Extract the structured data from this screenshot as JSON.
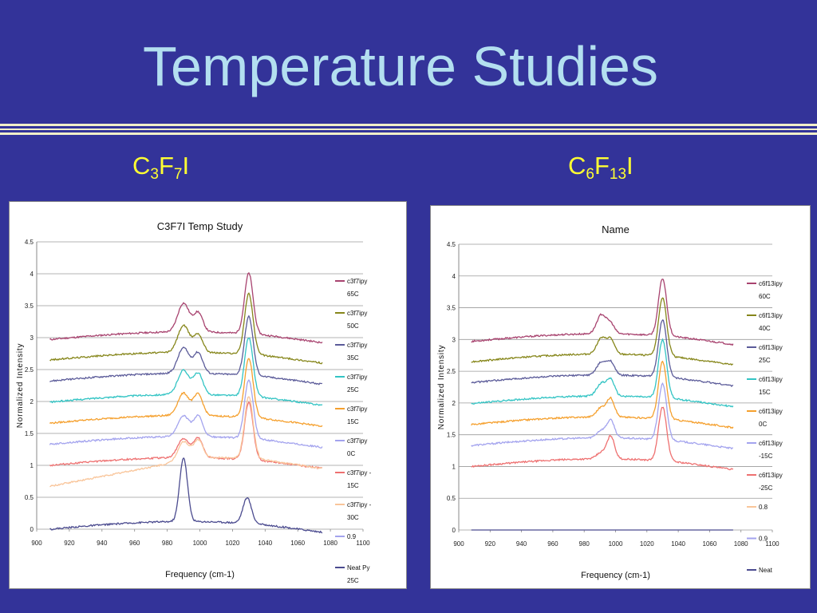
{
  "slide": {
    "title": "Temperature Studies"
  },
  "left_heading": {
    "base1": "C",
    "sub1": "3",
    "base2": "F",
    "sub2": "7",
    "base3": "I"
  },
  "right_heading": {
    "base1": "C",
    "sub1": "6",
    "base2": "F",
    "sub2": "13",
    "base3": "I"
  },
  "chart_data": [
    {
      "type": "line",
      "title": "C3F7I Temp Study",
      "xlabel": "Frequency (cm-1)",
      "ylabel": "Normalized Intensity",
      "xlim": [
        900,
        1100
      ],
      "ylim": [
        0,
        4.5
      ],
      "x_ticks": [
        "900",
        "920",
        "940",
        "960",
        "980",
        "1000",
        "1020",
        "1040",
        "1060",
        "1080",
        "1100"
      ],
      "y_ticks": [
        "0",
        "0.5",
        "1",
        "1.5",
        "2",
        "2.5",
        "3",
        "3.5",
        "4",
        "4.5"
      ],
      "grid": true,
      "legend": "right",
      "series": [
        {
          "name": "c3f7ipy 65C",
          "legend_lines": [
            "c3f7ipy",
            "65C"
          ],
          "color": "#a8436f",
          "offset": 2.97,
          "peaks": [
            [
              990,
              0.45,
              3.5
            ],
            [
              999,
              0.3,
              2.8
            ],
            [
              1030,
              0.95,
              2.6
            ]
          ]
        },
        {
          "name": "c3f7ipy 50C",
          "legend_lines": [
            "c3f7ipy",
            "50C"
          ],
          "color": "#86861a",
          "offset": 2.65,
          "peaks": [
            [
              990,
              0.42,
              3.5
            ],
            [
              999,
              0.28,
              2.8
            ],
            [
              1030,
              0.95,
              2.6
            ]
          ]
        },
        {
          "name": "c3f7ipy 35C",
          "legend_lines": [
            "c3f7ipy",
            "35C"
          ],
          "color": "#5b5b99",
          "offset": 2.32,
          "peaks": [
            [
              990,
              0.4,
              3.5
            ],
            [
              999,
              0.32,
              2.8
            ],
            [
              1030,
              0.92,
              2.6
            ]
          ]
        },
        {
          "name": "c3f7ipy 25C",
          "legend_lines": [
            "c3f7ipy",
            "25C"
          ],
          "color": "#33c4c4",
          "offset": 1.99,
          "peaks": [
            [
              990,
              0.38,
              3.5
            ],
            [
              999,
              0.33,
              2.8
            ],
            [
              1030,
              0.92,
              2.6
            ]
          ]
        },
        {
          "name": "c3f7ipy 15C",
          "legend_lines": [
            "c3f7ipy",
            "15C"
          ],
          "color": "#f5a02e",
          "offset": 1.66,
          "peaks": [
            [
              990,
              0.35,
              3.5
            ],
            [
              999,
              0.33,
              2.8
            ],
            [
              1030,
              0.93,
              2.6
            ]
          ]
        },
        {
          "name": "c3f7ipy 0C",
          "legend_lines": [
            "c3f7ipy",
            "0C"
          ],
          "color": "#a3a3ee",
          "offset": 1.33,
          "peaks": [
            [
              990,
              0.33,
              3.5
            ],
            [
              999,
              0.32,
              2.8
            ],
            [
              1030,
              0.92,
              2.6
            ]
          ]
        },
        {
          "name": "c3f7ipy -15C",
          "legend_lines": [
            "c3f7ipy -",
            "15C"
          ],
          "color": "#ee7070",
          "offset": 1.0,
          "peaks": [
            [
              990,
              0.3,
              3.5
            ],
            [
              999,
              0.3,
              2.8
            ],
            [
              1030,
              0.9,
              2.6
            ]
          ]
        },
        {
          "name": "c3f7ipy -30C",
          "legend_lines": [
            "c3f7ipy -",
            "30C"
          ],
          "color": "#f9c59a",
          "offset": 0.67,
          "rise": 0.45,
          "peaks": [
            [
              990,
              0.3,
              3.5
            ],
            [
              999,
              0.28,
              2.8
            ],
            [
              1030,
              0.95,
              2.6
            ]
          ]
        },
        {
          "name": "0.9",
          "legend_lines": [
            "0.9"
          ],
          "color": "#a3a3ee",
          "values_flat": null
        },
        {
          "name": "Neat Py 25C",
          "legend_lines": [
            "Neat Py",
            "25C"
          ],
          "color": "#4b4b8f",
          "offset": 0.0,
          "peaks": [
            [
              990,
              1.0,
              2.4
            ],
            [
              1029,
              0.4,
              2.6
            ]
          ]
        }
      ]
    },
    {
      "type": "line",
      "title": "Name",
      "xlabel": "Frequency (cm-1)",
      "ylabel": "Normalized Intensity",
      "xlim": [
        900,
        1100
      ],
      "ylim": [
        0,
        4.5
      ],
      "x_ticks": [
        "900",
        "920",
        "940",
        "960",
        "980",
        "1000",
        "1020",
        "1040",
        "1060",
        "1080",
        "1100"
      ],
      "y_ticks": [
        "0",
        "0.5",
        "1",
        "1.5",
        "2",
        "2.5",
        "3",
        "3.5",
        "4",
        "4.5"
      ],
      "grid": true,
      "legend": "right",
      "series": [
        {
          "name": "c6f13ipy 60C",
          "legend_lines": [
            "c6f13ipy",
            "60C"
          ],
          "color": "#a8436f",
          "offset": 2.97,
          "peaks": [
            [
              991,
              0.3,
              3.0
            ],
            [
              997,
              0.15,
              2.4
            ],
            [
              1030,
              0.9,
              2.6
            ]
          ]
        },
        {
          "name": "c6f13ipy 40C",
          "legend_lines": [
            "c6f13ipy",
            "40C"
          ],
          "color": "#86861a",
          "offset": 2.65,
          "peaks": [
            [
              991,
              0.25,
              3.0
            ],
            [
              997,
              0.22,
              2.4
            ],
            [
              1030,
              0.92,
              2.6
            ]
          ]
        },
        {
          "name": "c6f13ipy 25C",
          "legend_lines": [
            "c6f13ipy",
            "25C"
          ],
          "color": "#5b5b99",
          "offset": 2.32,
          "peaks": [
            [
              991,
              0.2,
              3.0
            ],
            [
              997,
              0.2,
              2.4
            ],
            [
              1030,
              0.9,
              2.6
            ]
          ]
        },
        {
          "name": "c6f13ipy 15C",
          "legend_lines": [
            "c6f13ipy",
            "15C"
          ],
          "color": "#33c4c4",
          "offset": 1.99,
          "peaks": [
            [
              991,
              0.2,
              3.0
            ],
            [
              997,
              0.25,
              2.4
            ],
            [
              1030,
              0.92,
              2.6
            ]
          ]
        },
        {
          "name": "c6f13ipy 0C",
          "legend_lines": [
            "c6f13ipy",
            "0C"
          ],
          "color": "#f5a02e",
          "offset": 1.66,
          "peaks": [
            [
              991,
              0.15,
              3.0
            ],
            [
              997,
              0.28,
              2.4
            ],
            [
              1030,
              0.9,
              2.6
            ]
          ]
        },
        {
          "name": "c6f13ipy -15C",
          "legend_lines": [
            "c6f13ipy",
            "-15C"
          ],
          "color": "#a3a3ee",
          "offset": 1.33,
          "peaks": [
            [
              991,
              0.12,
              3.0
            ],
            [
              997,
              0.27,
              2.4
            ],
            [
              1030,
              0.88,
              2.6
            ]
          ]
        },
        {
          "name": "c6f13ipy -25C",
          "legend_lines": [
            "c6f13ipy",
            "-25C"
          ],
          "color": "#ee7070",
          "offset": 1.0,
          "peaks": [
            [
              991,
              0.1,
              3.0
            ],
            [
              997,
              0.35,
              2.4
            ],
            [
              1030,
              0.85,
              2.6
            ]
          ]
        },
        {
          "name": "0.8",
          "legend_lines": [
            "0.8"
          ],
          "color": "#f9c59a",
          "values_flat": null
        },
        {
          "name": "0.9",
          "legend_lines": [
            "0.9"
          ],
          "color": "#a3a3ee",
          "values_flat": null
        },
        {
          "name": "Neat",
          "legend_lines": [
            "Neat"
          ],
          "color": "#4b4b8f",
          "values_flat": 0.0
        }
      ]
    }
  ]
}
